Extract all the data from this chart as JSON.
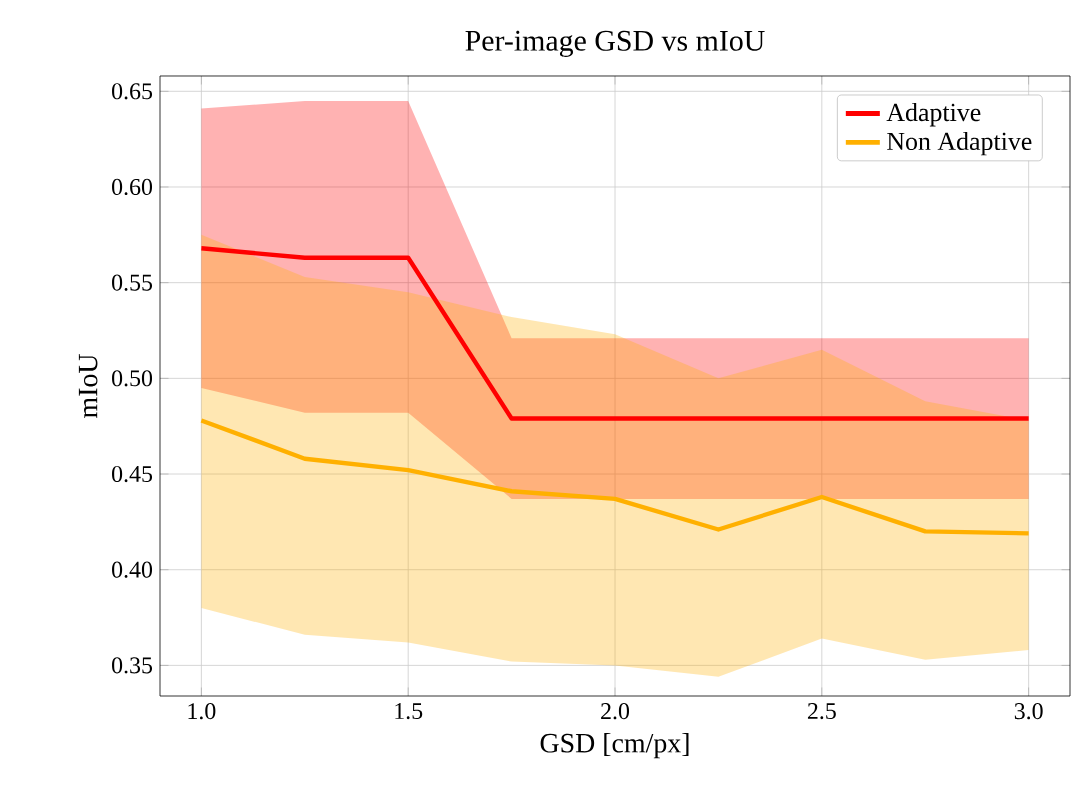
{
  "chart_data": {
    "type": "line",
    "title": "Per-image GSD vs mIoU",
    "xlabel": "GSD [cm/px]",
    "ylabel": "mIoU",
    "x": [
      1.0,
      1.25,
      1.5,
      1.75,
      2.0,
      2.25,
      2.5,
      2.75,
      3.0
    ],
    "series": [
      {
        "name": "Adaptive",
        "color": "#ff0000",
        "values": [
          0.568,
          0.563,
          0.563,
          0.479,
          0.479,
          0.479,
          0.479,
          0.479,
          0.479
        ],
        "upper": [
          0.641,
          0.645,
          0.645,
          0.521,
          0.521,
          0.521,
          0.521,
          0.521,
          0.521
        ],
        "lower": [
          0.495,
          0.482,
          0.482,
          0.437,
          0.437,
          0.437,
          0.437,
          0.437,
          0.437
        ]
      },
      {
        "name": "Non Adaptive",
        "color": "#ffb000",
        "values": [
          0.478,
          0.458,
          0.452,
          0.441,
          0.437,
          0.421,
          0.438,
          0.42,
          0.419
        ],
        "upper": [
          0.575,
          0.553,
          0.545,
          0.532,
          0.523,
          0.5,
          0.515,
          0.488,
          0.478
        ],
        "lower": [
          0.38,
          0.366,
          0.362,
          0.352,
          0.35,
          0.344,
          0.364,
          0.353,
          0.358
        ]
      }
    ],
    "xlim": [
      0.9,
      3.1
    ],
    "ylim": [
      0.334,
      0.658
    ],
    "xticks": [
      {
        "value": 1.0,
        "label": "1.0"
      },
      {
        "value": 1.5,
        "label": "1.5"
      },
      {
        "value": 2.0,
        "label": "2.0"
      },
      {
        "value": 2.5,
        "label": "2.5"
      },
      {
        "value": 3.0,
        "label": "3.0"
      }
    ],
    "yticks": [
      {
        "value": 0.35,
        "label": "0.35"
      },
      {
        "value": 0.4,
        "label": "0.40"
      },
      {
        "value": 0.45,
        "label": "0.45"
      },
      {
        "value": 0.5,
        "label": "0.50"
      },
      {
        "value": 0.55,
        "label": "0.55"
      },
      {
        "value": 0.6,
        "label": "0.60"
      },
      {
        "value": 0.65,
        "label": "0.65"
      }
    ],
    "grid": true,
    "legend": "top right",
    "marker": "none",
    "line_style": "solid"
  }
}
